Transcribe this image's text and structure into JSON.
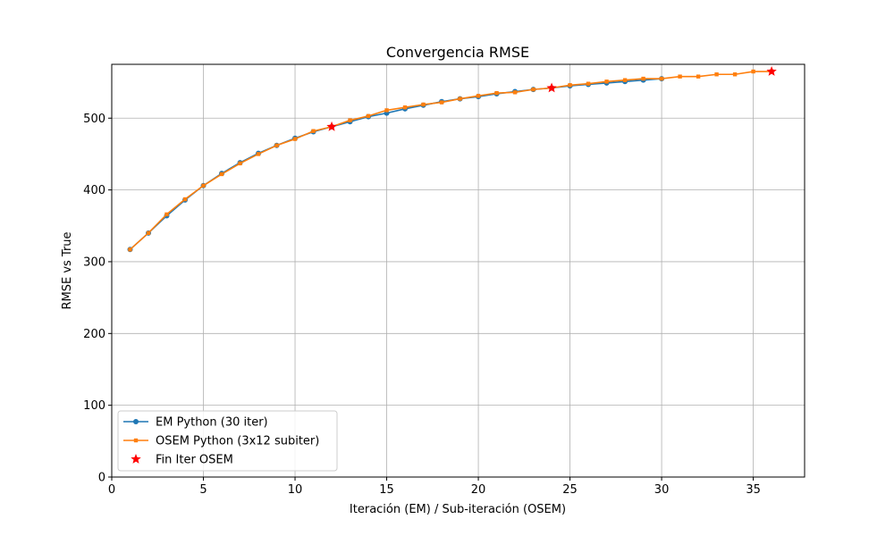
{
  "chart_data": {
    "type": "line",
    "title": "Convergencia RMSE",
    "xlabel": "Iteración (EM) / Sub-iteración (OSEM)",
    "ylabel": "RMSE vs True",
    "xlim": [
      0,
      37.8
    ],
    "ylim": [
      0,
      575
    ],
    "x_ticks": [
      0,
      5,
      10,
      15,
      20,
      25,
      30,
      35
    ],
    "y_ticks": [
      0,
      100,
      200,
      300,
      400,
      500
    ],
    "grid": true,
    "legend_position": "lower-left",
    "series": [
      {
        "name": "EM Python (30 iter)",
        "color": "#1f77b4",
        "marker": "circle",
        "x": [
          1,
          2,
          3,
          4,
          5,
          6,
          7,
          8,
          9,
          10,
          11,
          12,
          13,
          14,
          15,
          16,
          17,
          18,
          19,
          20,
          21,
          22,
          23,
          24,
          25,
          26,
          27,
          28,
          29,
          30
        ],
        "y": [
          317,
          340,
          364,
          386,
          406,
          423,
          438,
          451,
          462,
          472,
          481,
          488,
          495,
          502,
          507,
          513,
          518,
          523,
          527,
          530,
          534,
          537,
          540,
          542,
          545,
          547,
          549,
          551,
          553,
          555
        ]
      },
      {
        "name": "OSEM Python (3x12 subiter)",
        "color": "#ff7f0e",
        "marker": "square",
        "x": [
          1,
          2,
          3,
          4,
          5,
          6,
          7,
          8,
          9,
          10,
          11,
          12,
          13,
          14,
          15,
          16,
          17,
          18,
          19,
          20,
          21,
          22,
          23,
          24,
          25,
          26,
          27,
          28,
          29,
          30,
          31,
          32,
          33,
          34,
          35,
          36
        ],
        "y": [
          317,
          340,
          366,
          387,
          406,
          422,
          437,
          450,
          462,
          471,
          482,
          488,
          497,
          503,
          511,
          515,
          519,
          522,
          527,
          531,
          535,
          536,
          540,
          542,
          546,
          548,
          551,
          553,
          555,
          555,
          558,
          558,
          561,
          561,
          565,
          565
        ]
      },
      {
        "name": "Fin Iter OSEM",
        "color": "#ff0000",
        "marker": "star",
        "line": false,
        "x": [
          12,
          24,
          36
        ],
        "y": [
          488,
          542,
          565
        ]
      }
    ]
  }
}
